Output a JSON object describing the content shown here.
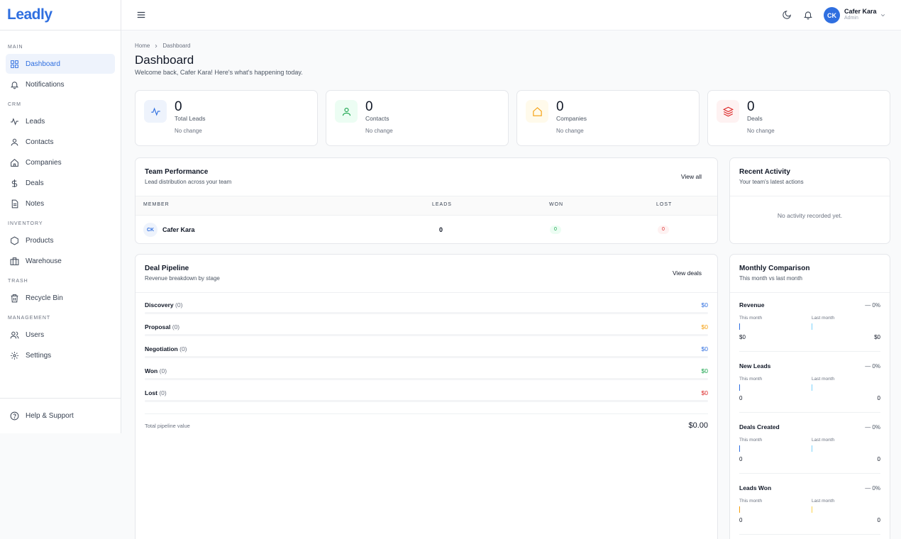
{
  "app": {
    "logo": "Leadly"
  },
  "colors": {
    "accent": "#2f6fe0",
    "green": "#16a34a",
    "red": "#dc2626",
    "orange": "#f59e0b"
  },
  "sidebar": {
    "sections": {
      "main": "MAIN",
      "crm": "CRM",
      "inventory": "INVENTORY",
      "trash": "TRASH",
      "management": "MANAGEMENT"
    },
    "items": {
      "dashboard": "Dashboard",
      "notifications": "Notifications",
      "leads": "Leads",
      "contacts": "Contacts",
      "companies": "Companies",
      "deals": "Deals",
      "notes": "Notes",
      "products": "Products",
      "warehouse": "Warehouse",
      "recycle_bin": "Recycle Bin",
      "users": "Users",
      "settings": "Settings"
    },
    "help": "Help & Support"
  },
  "topbar": {
    "user_initials": "CK",
    "user_name": "Cafer Kara",
    "user_role": "Admin"
  },
  "page": {
    "breadcrumb": [
      "Home",
      "Dashboard"
    ],
    "title": "Dashboard",
    "subtitle": "Welcome back, Cafer Kara! Here's what's happening today."
  },
  "stats": [
    {
      "value": "0",
      "label": "Total Leads",
      "change": "No change",
      "icon": "activity-icon"
    },
    {
      "value": "0",
      "label": "Contacts",
      "change": "No change",
      "icon": "user-icon"
    },
    {
      "value": "0",
      "label": "Companies",
      "change": "No change",
      "icon": "home-icon"
    },
    {
      "value": "0",
      "label": "Deals",
      "change": "No change",
      "icon": "layers-icon"
    }
  ],
  "team": {
    "title": "Team Performance",
    "subtitle": "Lead distribution across your team",
    "link": "View all",
    "columns": [
      "MEMBER",
      "LEADS",
      "WON",
      "LOST"
    ],
    "rows": [
      {
        "initials": "CK",
        "name": "Cafer Kara",
        "leads": "0",
        "won": "0",
        "lost": "0"
      }
    ]
  },
  "activity": {
    "title": "Recent Activity",
    "subtitle": "Your team's latest actions",
    "empty": "No activity recorded yet."
  },
  "pipeline": {
    "title": "Deal Pipeline",
    "subtitle": "Revenue breakdown by stage",
    "link": "View deals",
    "stages": [
      {
        "name": "Discovery",
        "count": "(0)",
        "value": "$0",
        "color": "#2f6fe0"
      },
      {
        "name": "Proposal",
        "count": "(0)",
        "value": "$0",
        "color": "#f59e0b"
      },
      {
        "name": "Negotiation",
        "count": "(0)",
        "value": "$0",
        "color": "#2f6fe0"
      },
      {
        "name": "Won",
        "count": "(0)",
        "value": "$0",
        "color": "#16a34a"
      },
      {
        "name": "Lost",
        "count": "(0)",
        "value": "$0",
        "color": "#dc2626"
      }
    ],
    "total_label": "Total pipeline value",
    "total_value": "$0.00"
  },
  "monthly": {
    "title": "Monthly Comparison",
    "subtitle": "This month vs last month",
    "this_label": "This month",
    "last_label": "Last month",
    "metrics": [
      {
        "name": "Revenue",
        "pct": "— 0%",
        "this": "$0",
        "last": "$0",
        "color": "#2f6fe0"
      },
      {
        "name": "New Leads",
        "pct": "— 0%",
        "this": "0",
        "last": "0",
        "color": "#2f6fe0"
      },
      {
        "name": "Deals Created",
        "pct": "— 0%",
        "this": "0",
        "last": "0",
        "color": "#2f6fe0"
      },
      {
        "name": "Leads Won",
        "pct": "— 0%",
        "this": "0",
        "last": "0",
        "color": "#f59e0b"
      }
    ]
  }
}
